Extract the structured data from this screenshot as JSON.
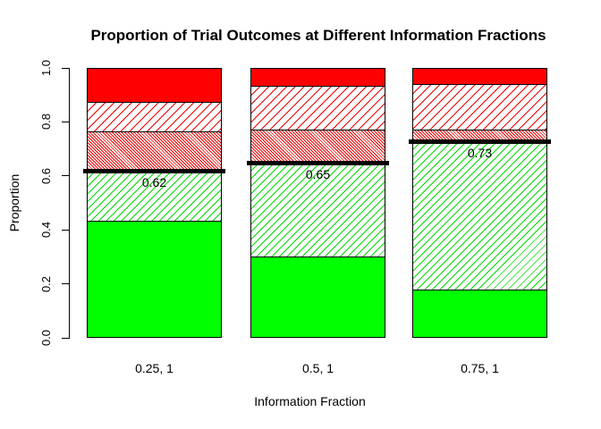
{
  "chart_data": {
    "type": "bar",
    "stacked": true,
    "title": "Proportion of Trial Outcomes at Different Information Fractions",
    "xlabel": "Information Fraction",
    "ylabel": "Proportion",
    "ylim": [
      0,
      1
    ],
    "grid": false,
    "legend": "none",
    "ytick_labels": [
      "0.0",
      "0.2",
      "0.4",
      "0.6",
      "0.8",
      "1.0"
    ],
    "ytick_values": [
      0.0,
      0.2,
      0.4,
      0.6,
      0.8,
      1.0
    ],
    "categories": [
      "0.25, 1",
      "0.5, 1",
      "0.75, 1"
    ],
    "series": [
      {
        "name": "solid-green",
        "pattern": "solid",
        "color": "#00ff00",
        "values": [
          0.435,
          0.3,
          0.18
        ]
      },
      {
        "name": "green-hatched",
        "pattern": "hatch",
        "color": "#00dd00",
        "hatch_angle": 45,
        "hatch_spacing": 6,
        "values": [
          0.185,
          0.35,
          0.55
        ]
      },
      {
        "name": "red-dense-hatched",
        "pattern": "hatch",
        "color": "#ee0000",
        "hatch_angle": -45,
        "hatch_spacing": 2.5,
        "values": [
          0.145,
          0.12,
          0.04
        ]
      },
      {
        "name": "red-hatched",
        "pattern": "hatch",
        "color": "#ee0000",
        "hatch_angle": 45,
        "hatch_spacing": 7,
        "values": [
          0.11,
          0.165,
          0.17
        ]
      },
      {
        "name": "solid-red",
        "pattern": "solid",
        "color": "#ff0000",
        "values": [
          0.125,
          0.065,
          0.06
        ]
      }
    ],
    "threshold_lines": {
      "color": "#000000",
      "values": [
        0.62,
        0.65,
        0.73
      ],
      "labels": [
        "0.62",
        "0.65",
        "0.73"
      ]
    }
  }
}
